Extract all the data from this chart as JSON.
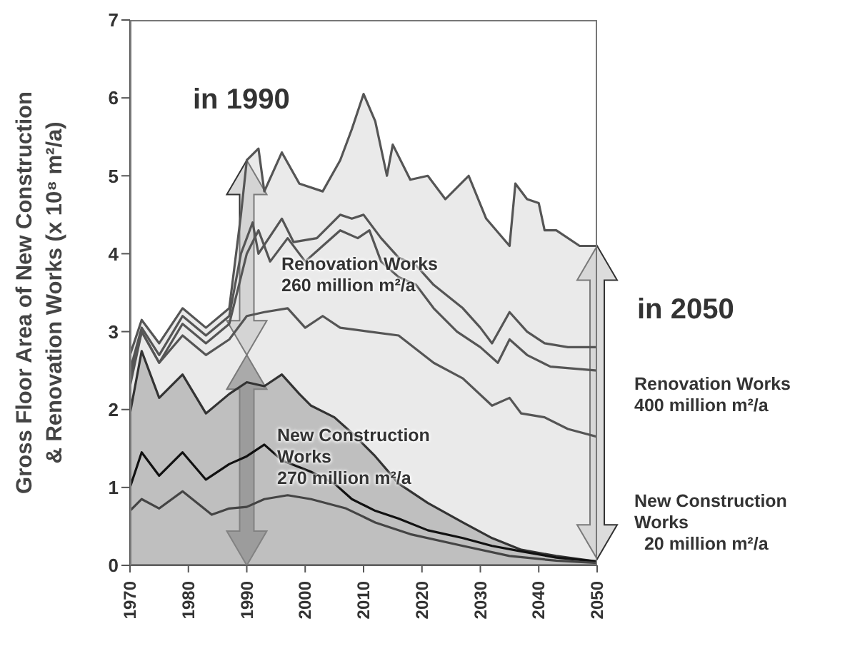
{
  "chart_data": {
    "type": "line",
    "ylabel": "Gross Floor Area of New Construction\n& Renovation Works (x 10⁸ m²/a)",
    "xlim": [
      1970,
      2050
    ],
    "xticks": [
      1970,
      1980,
      1990,
      2000,
      2010,
      2020,
      2030,
      2040,
      2050
    ],
    "ylim": [
      0,
      7
    ],
    "yticks": [
      0,
      1,
      2,
      3,
      4,
      5,
      6,
      7
    ],
    "grid": false,
    "legend": false,
    "marker": "none",
    "line_style": "solid",
    "series": [
      {
        "type": "area",
        "color": "#555555",
        "x": [
          1970,
          1972,
          1975,
          1979,
          1983,
          1987,
          1989,
          1990,
          1992,
          1993,
          1996,
          1999,
          2003,
          2006,
          2008,
          2010,
          2012,
          2014,
          2015,
          2018,
          2021,
          2024,
          2028,
          2031,
          2035,
          2036,
          2038,
          2040,
          2041,
          2043,
          2047,
          2050
        ],
        "values": [
          2.7,
          3.15,
          2.85,
          3.3,
          3.05,
          3.3,
          4.5,
          5.2,
          5.35,
          4.8,
          5.3,
          4.9,
          4.8,
          5.2,
          5.6,
          6.05,
          5.7,
          5.0,
          5.4,
          4.95,
          5.0,
          4.7,
          5.0,
          4.45,
          4.1,
          4.9,
          4.7,
          4.65,
          4.3,
          4.3,
          4.1,
          4.1
        ]
      },
      {
        "type": "line",
        "color": "#555555",
        "x": [
          1970,
          1972,
          1975,
          1979,
          1983,
          1987,
          1989,
          1991,
          1992,
          1996,
          1998,
          2002,
          2006,
          2008,
          2010,
          2013,
          2016,
          2019,
          2022,
          2027,
          2030,
          2032,
          2035,
          2038,
          2041,
          2045,
          2050
        ],
        "values": [
          2.5,
          3.05,
          2.7,
          3.2,
          2.95,
          3.2,
          4.0,
          4.4,
          4.0,
          4.45,
          4.15,
          4.2,
          4.5,
          4.45,
          4.5,
          4.2,
          3.95,
          3.85,
          3.6,
          3.3,
          3.05,
          2.85,
          3.25,
          3.0,
          2.85,
          2.8,
          2.8
        ]
      },
      {
        "type": "line",
        "color": "#555555",
        "x": [
          1970,
          1972,
          1975,
          1979,
          1983,
          1987,
          1990,
          1992,
          1994,
          1997,
          2000,
          2003,
          2006,
          2009,
          2011,
          2013,
          2016,
          2019,
          2022,
          2026,
          2030,
          2033,
          2035,
          2038,
          2042,
          2050
        ],
        "values": [
          2.4,
          3.0,
          2.6,
          3.1,
          2.85,
          3.1,
          4.0,
          4.3,
          3.9,
          4.2,
          3.9,
          4.1,
          4.3,
          4.2,
          4.3,
          3.9,
          3.7,
          3.6,
          3.3,
          3.0,
          2.8,
          2.6,
          2.9,
          2.7,
          2.55,
          2.5
        ]
      },
      {
        "type": "line",
        "color": "#555555",
        "x": [
          1970,
          1972,
          1975,
          1979,
          1983,
          1987,
          1990,
          1993,
          1997,
          2000,
          2003,
          2006,
          2011,
          2016,
          2022,
          2027,
          2032,
          2035,
          2037,
          2041,
          2045,
          2050
        ],
        "values": [
          2.3,
          3.0,
          2.6,
          2.95,
          2.7,
          2.9,
          3.2,
          3.25,
          3.3,
          3.05,
          3.2,
          3.05,
          3.0,
          2.95,
          2.6,
          2.4,
          2.05,
          2.15,
          1.95,
          1.9,
          1.75,
          1.65
        ]
      },
      {
        "type": "area",
        "color": "#333333",
        "x": [
          1970,
          1972,
          1975,
          1979,
          1983,
          1987,
          1990,
          1993,
          1996,
          1999,
          2001,
          2005,
          2008,
          2012,
          2016,
          2021,
          2027,
          2032,
          2037,
          2043,
          2047,
          2050
        ],
        "values": [
          1.95,
          2.75,
          2.15,
          2.45,
          1.95,
          2.2,
          2.35,
          2.3,
          2.45,
          2.2,
          2.05,
          1.9,
          1.7,
          1.4,
          1.05,
          0.8,
          0.55,
          0.35,
          0.2,
          0.12,
          0.08,
          0.05
        ]
      },
      {
        "color": "#111111",
        "x": [
          1970,
          1972,
          1975,
          1979,
          1983,
          1987,
          1990,
          1993,
          1996,
          2001,
          2005,
          2008,
          2012,
          2016,
          2021,
          2027,
          2032,
          2037,
          2043,
          2050
        ],
        "values": [
          1.0,
          1.45,
          1.15,
          1.45,
          1.1,
          1.3,
          1.4,
          1.55,
          1.35,
          1.2,
          1.05,
          0.85,
          0.7,
          0.6,
          0.45,
          0.35,
          0.25,
          0.18,
          0.1,
          0.05
        ]
      },
      {
        "color": "#444444",
        "x": [
          1970,
          1972,
          1975,
          1979,
          1984,
          1987,
          1990,
          1993,
          1997,
          2001,
          2007,
          2012,
          2018,
          2027,
          2035,
          2043,
          2050
        ],
        "values": [
          0.7,
          0.85,
          0.73,
          0.95,
          0.65,
          0.73,
          0.75,
          0.85,
          0.9,
          0.85,
          0.73,
          0.55,
          0.4,
          0.25,
          0.12,
          0.06,
          0.03
        ]
      }
    ],
    "annotations": [
      "in 1990",
      "Renovation Works\n260 million m²/a",
      "New Construction\nWorks\n270 million m²/a",
      "in 2050",
      "Renovation Works\n400 million m²/a",
      "New Construction\nWorks\n  20 million m²/a"
    ]
  }
}
